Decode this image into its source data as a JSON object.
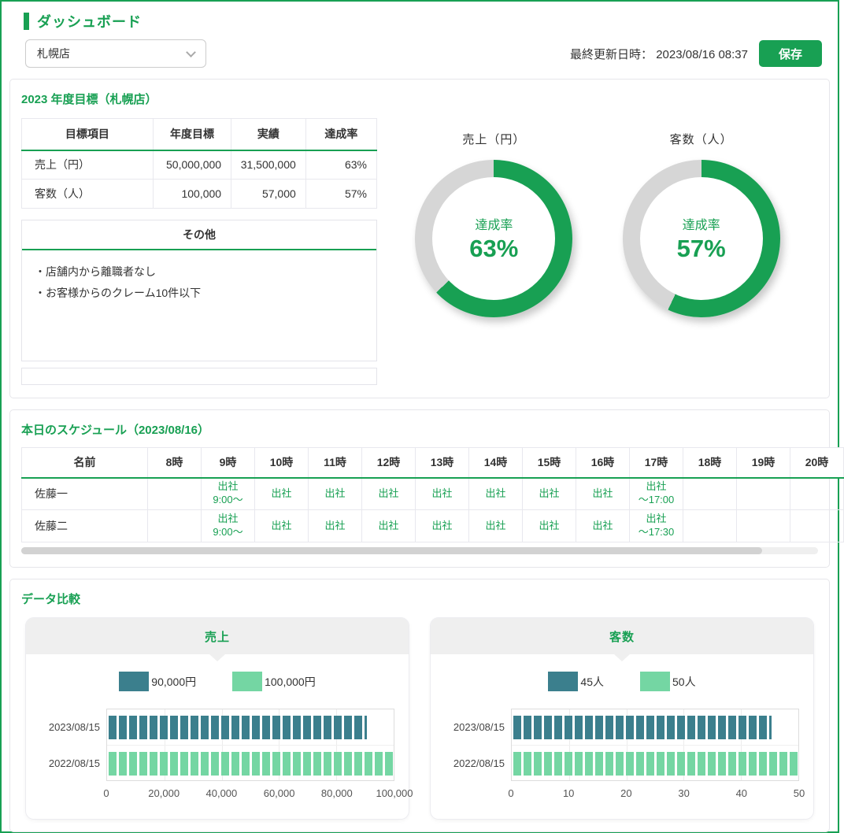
{
  "colors": {
    "accent": "#18A053",
    "donut_rest": "#D6D6D6",
    "bar_dark": "#3B7F8D",
    "bar_light": "#74D6A3"
  },
  "header": {
    "title": "ダッシュボード"
  },
  "toolbar": {
    "store_select_value": "札幌店",
    "last_updated_label": "最終更新日時：",
    "last_updated_value": "2023/08/16 08:37",
    "save_label": "保存"
  },
  "goals_section": {
    "title": "2023 年度目標（札幌店）",
    "table": {
      "headers": [
        "目標項目",
        "年度目標",
        "実績",
        "達成率"
      ],
      "rows": [
        {
          "item": "売上（円）",
          "target": "50,000,000",
          "actual": "31,500,000",
          "rate": "63%"
        },
        {
          "item": "客数（人）",
          "target": "100,000",
          "actual": "57,000",
          "rate": "57%"
        }
      ]
    },
    "other": {
      "title": "その他",
      "notes": [
        "・店舗内から離職者なし",
        "・お客様からのクレーム10件以下"
      ]
    }
  },
  "schedule_section": {
    "title": "本日のスケジュール（2023/08/16）",
    "name_header": "名前",
    "hours": [
      "8時",
      "9時",
      "10時",
      "11時",
      "12時",
      "13時",
      "14時",
      "15時",
      "16時",
      "17時",
      "18時",
      "19時",
      "20時"
    ],
    "rows": [
      {
        "name": "佐藤一",
        "cells": [
          "",
          "出社\n9:00〜",
          "出社",
          "出社",
          "出社",
          "出社",
          "出社",
          "出社",
          "出社",
          "出社\n〜17:00",
          "",
          "",
          ""
        ]
      },
      {
        "name": "佐藤二",
        "cells": [
          "",
          "出社\n9:00〜",
          "出社",
          "出社",
          "出社",
          "出社",
          "出社",
          "出社",
          "出社",
          "出社\n〜17:30",
          "",
          "",
          ""
        ]
      }
    ]
  },
  "comparison_section": {
    "title": "データ比較"
  },
  "chart_data": [
    {
      "type": "donut",
      "title": "売上（円）",
      "label": "達成率",
      "value_pct": 63,
      "pct_text": "63%"
    },
    {
      "type": "donut",
      "title": "客数（人）",
      "label": "達成率",
      "value_pct": 57,
      "pct_text": "57%"
    },
    {
      "type": "bar",
      "orientation": "horizontal",
      "title": "売上",
      "categories": [
        "2023/08/15",
        "2022/08/15"
      ],
      "values": [
        90000,
        100000
      ],
      "legend": [
        "90,000円",
        "100,000円"
      ],
      "colors": [
        "#3B7F8D",
        "#74D6A3"
      ],
      "bar_pcts": [
        90,
        100
      ],
      "xlim": [
        0,
        100000
      ],
      "xticks": [
        "0",
        "20,000",
        "40,000",
        "60,000",
        "80,000",
        "100,000"
      ],
      "grid": true,
      "legend_position": "top"
    },
    {
      "type": "bar",
      "orientation": "horizontal",
      "title": "客数",
      "categories": [
        "2023/08/15",
        "2022/08/15"
      ],
      "values": [
        45,
        50
      ],
      "legend": [
        "45人",
        "50人"
      ],
      "colors": [
        "#3B7F8D",
        "#74D6A3"
      ],
      "bar_pcts": [
        90,
        100
      ],
      "xlim": [
        0,
        50
      ],
      "xticks": [
        "0",
        "10",
        "20",
        "30",
        "40",
        "50"
      ],
      "grid": true,
      "legend_position": "top"
    }
  ]
}
